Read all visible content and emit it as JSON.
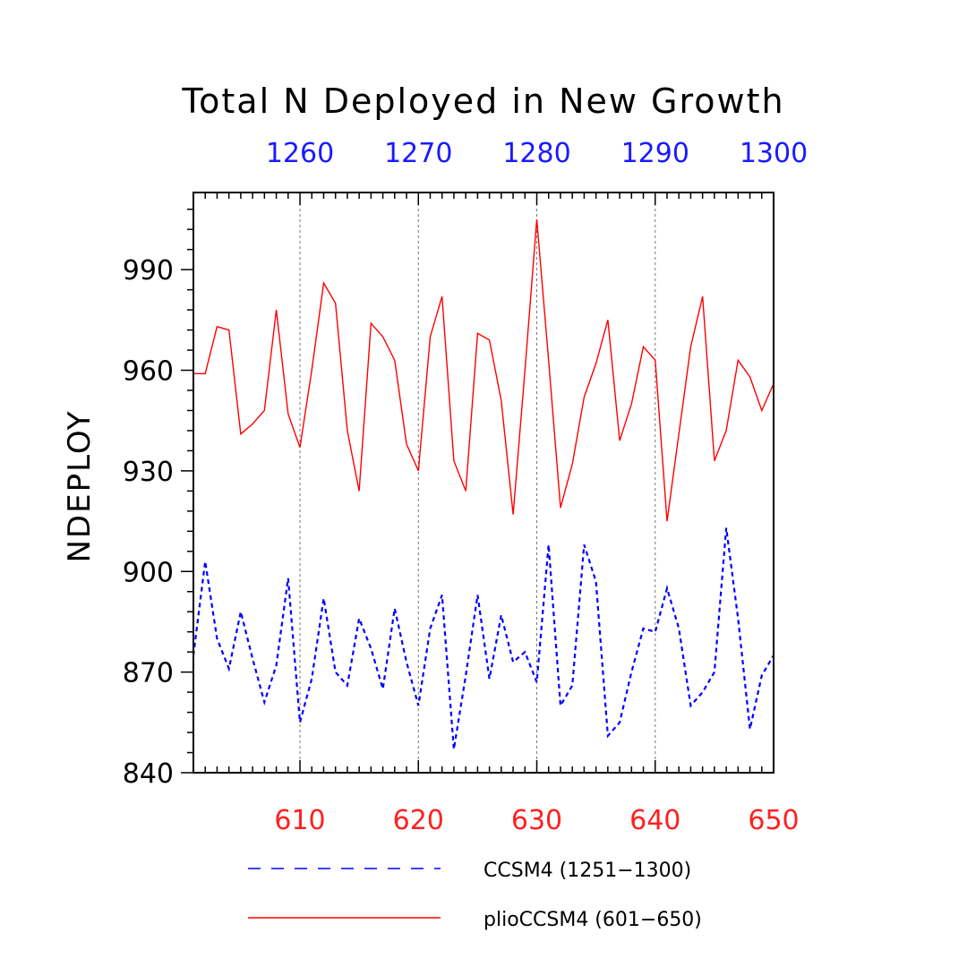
{
  "chart_data": {
    "type": "line",
    "title": "Total N Deployed in New Growth",
    "ylabel": "NDEPLOY",
    "xlabel": "",
    "ylim": [
      840,
      1013
    ],
    "y_ticks": [
      840,
      870,
      900,
      930,
      960,
      990
    ],
    "bottom_axis": {
      "range": [
        601,
        650
      ],
      "ticks": [
        610,
        620,
        630,
        640,
        650
      ],
      "color": "#ff2020"
    },
    "top_axis": {
      "range": [
        1251,
        1300
      ],
      "ticks": [
        1260,
        1270,
        1280,
        1290,
        1300
      ],
      "color": "#1a1aff"
    },
    "grid": "vertical dashed at major x ticks",
    "legend_placement": "bottom",
    "series": [
      {
        "name": "pliOCCSM4 (601-650)",
        "label": "plioCCSM4 (601−650)",
        "color": "#ff0000",
        "style": "solid",
        "x": [
          601,
          602,
          603,
          604,
          605,
          606,
          607,
          608,
          609,
          610,
          611,
          612,
          613,
          614,
          615,
          616,
          617,
          618,
          619,
          620,
          621,
          622,
          623,
          624,
          625,
          626,
          627,
          628,
          629,
          630,
          631,
          632,
          633,
          634,
          635,
          636,
          637,
          638,
          639,
          640,
          641,
          642,
          643,
          644,
          645,
          646,
          647,
          648,
          649,
          650
        ],
        "values": [
          959,
          959,
          973,
          972,
          941,
          944,
          948,
          978,
          947,
          937,
          960,
          986,
          980,
          942,
          924,
          974,
          970,
          963,
          938,
          930,
          970,
          982,
          933,
          924,
          971,
          969,
          951,
          917,
          960,
          1005,
          963,
          919,
          932,
          952,
          962,
          975,
          939,
          950,
          967,
          963,
          915,
          941,
          967,
          982,
          933,
          942,
          963,
          958,
          948,
          956
        ]
      },
      {
        "name": "CCSM4 (1251-1300)",
        "label": "CCSM4 (1251−1300)",
        "color": "#0000ff",
        "style": "dashed",
        "x": [
          1251,
          1252,
          1253,
          1254,
          1255,
          1256,
          1257,
          1258,
          1259,
          1260,
          1261,
          1262,
          1263,
          1264,
          1265,
          1266,
          1267,
          1268,
          1269,
          1270,
          1271,
          1272,
          1273,
          1274,
          1275,
          1276,
          1277,
          1278,
          1279,
          1280,
          1281,
          1282,
          1283,
          1284,
          1285,
          1286,
          1287,
          1288,
          1289,
          1290,
          1291,
          1292,
          1293,
          1294,
          1295,
          1296,
          1297,
          1298,
          1299,
          1300
        ],
        "values": [
          875,
          903,
          880,
          871,
          888,
          874,
          861,
          872,
          898,
          855,
          868,
          892,
          870,
          866,
          886,
          877,
          865,
          889,
          873,
          860,
          883,
          893,
          847,
          869,
          893,
          868,
          887,
          873,
          876,
          867,
          908,
          860,
          866,
          908,
          897,
          851,
          855,
          870,
          883,
          882,
          895,
          883,
          860,
          864,
          870,
          913,
          886,
          853,
          869,
          875
        ]
      }
    ]
  }
}
